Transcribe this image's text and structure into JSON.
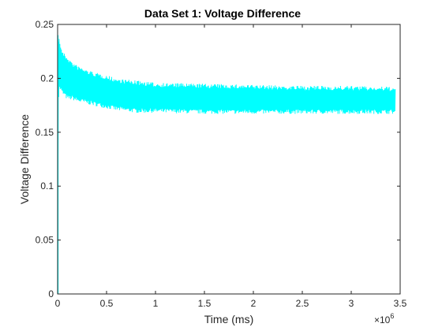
{
  "chart_data": {
    "type": "line",
    "title": "Data Set 1: Voltage Difference",
    "xlabel": "Time (ms)",
    "ylabel": "Voltage Difference",
    "xlim": [
      0,
      3.5
    ],
    "ylim": [
      0,
      0.25
    ],
    "x_multiplier": "×10",
    "x_exponent": "6",
    "x_ticks": [
      "0",
      "0.5",
      "1",
      "1.5",
      "2",
      "2.5",
      "3",
      "3.5"
    ],
    "y_ticks": [
      "0",
      "0.05",
      "0.1",
      "0.15",
      "0.2",
      "0.25"
    ],
    "grid": false,
    "color": "#00FFFF",
    "series": [
      {
        "x": [
          0,
          0.005,
          0.01,
          0.02,
          0.05,
          0.1,
          0.15,
          0.2,
          0.3,
          0.4,
          0.5,
          0.6,
          0.8,
          1.0,
          1.5,
          2.0,
          2.5,
          3.0,
          3.45
        ],
        "y_low": [
          0,
          0.16,
          0.18,
          0.19,
          0.185,
          0.18,
          0.18,
          0.178,
          0.176,
          0.174,
          0.172,
          0.17,
          0.168,
          0.168,
          0.167,
          0.167,
          0.167,
          0.167,
          0.167
        ],
        "y_high": [
          0,
          0.235,
          0.24,
          0.235,
          0.225,
          0.22,
          0.215,
          0.212,
          0.208,
          0.205,
          0.203,
          0.2,
          0.198,
          0.196,
          0.195,
          0.194,
          0.193,
          0.193,
          0.192
        ]
      }
    ]
  }
}
